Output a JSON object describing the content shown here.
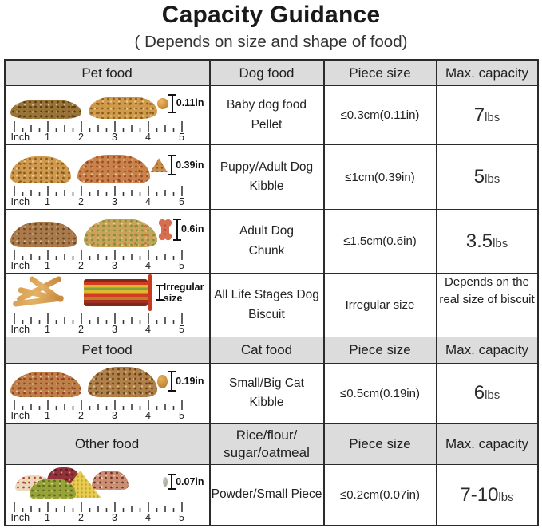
{
  "title": "Capacity Guidance",
  "subtitle": "( Depends on size and shape of food)",
  "ruler": {
    "labels": [
      "Inch",
      "1",
      "2",
      "3",
      "4",
      "5"
    ]
  },
  "colors": {
    "header_bg": "#dcdcdc",
    "border": "#2b2b2b",
    "measure_red": "#c63a21",
    "text": "#222222"
  },
  "sections": [
    {
      "header": {
        "pet": "Pet food",
        "food": "Dog food",
        "piece": "Piece size",
        "cap": "Max. capacity"
      },
      "rows": [
        {
          "food": "Baby dog food\nPellet",
          "piece": "≤0.3cm(0.11in)",
          "cap_value": "7",
          "cap_unit": "lbs",
          "measure": "0.11in",
          "icon": "pellet-icon"
        },
        {
          "food": "Puppy/Adult Dog\nKibble",
          "piece": "≤1cm(0.39in)",
          "cap_value": "5",
          "cap_unit": "lbs",
          "measure": "0.39in",
          "icon": "kibble-triangle-icon"
        },
        {
          "food": "Adult Dog\nChunk",
          "piece": "≤1.5cm(0.6in)",
          "cap_value": "3.5",
          "cap_unit": "lbs",
          "measure": "0.6in",
          "icon": "bone-treat-icon"
        },
        {
          "food": "All Life Stages Dog\nBiscuit",
          "piece": "Irregular size",
          "cap_text": "Depends on the\nreal size of biscuit",
          "measure": "Irregular\nsize",
          "icon": "biscuit-sticks-icon"
        }
      ]
    },
    {
      "header": {
        "pet": "Pet food",
        "food": "Cat food",
        "piece": "Piece size",
        "cap": "Max. capacity"
      },
      "rows": [
        {
          "food": "Small/Big Cat\nKibble",
          "piece": "≤0.5cm(0.19in)",
          "cap_value": "6",
          "cap_unit": "lbs",
          "measure": "0.19in",
          "icon": "cat-kibble-icon"
        }
      ]
    },
    {
      "header": {
        "pet": "Other food",
        "food": "Rice/flour/\nsugar/oatmeal",
        "piece": "Piece size",
        "cap": "Max. capacity"
      },
      "rows": [
        {
          "food": "Powder/Small Piece",
          "piece": "≤0.2cm(0.07in)",
          "cap_value": "7-10",
          "cap_unit": "lbs",
          "measure": "0.07in",
          "icon": "grain-icon"
        }
      ]
    }
  ]
}
